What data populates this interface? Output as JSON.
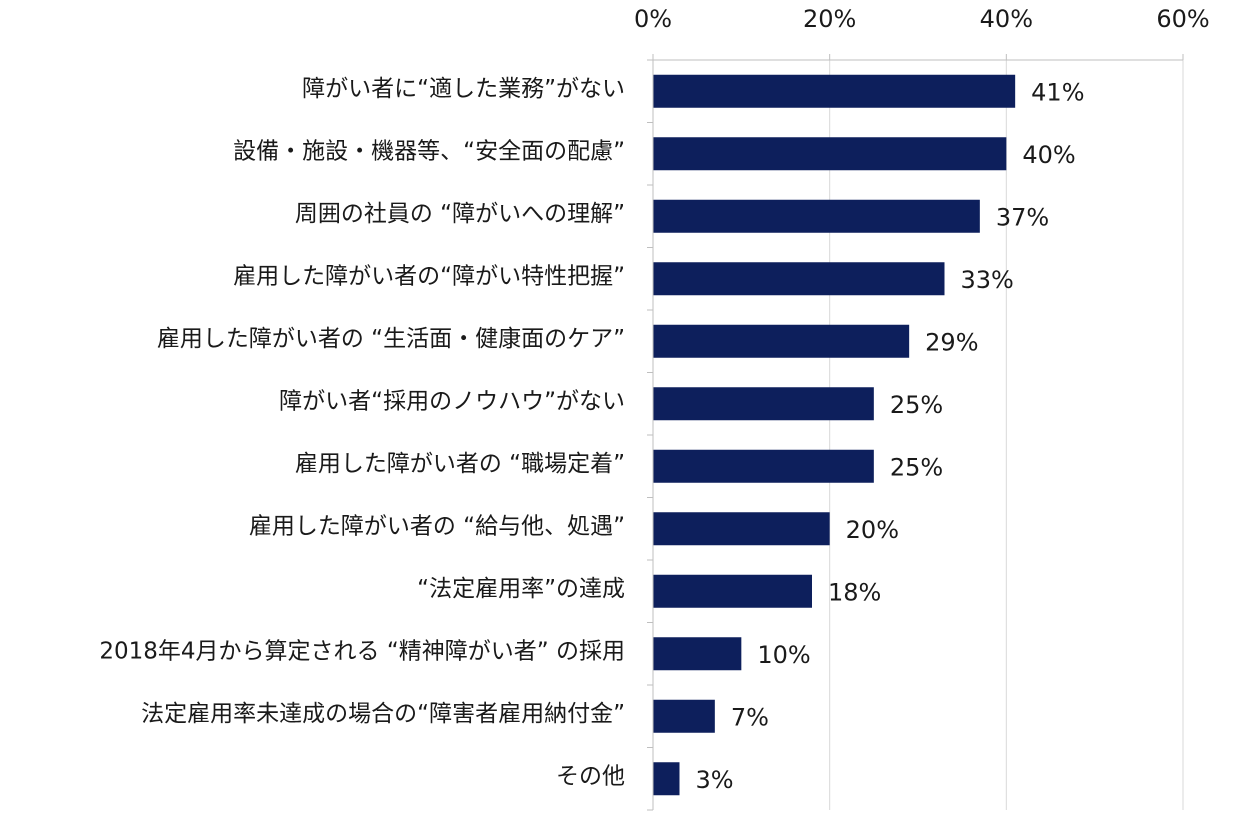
{
  "chart_data": {
    "type": "bar",
    "orientation": "horizontal",
    "categories": [
      "障がい者に“適した業務”がない",
      "設備・施設・機器等、“安全面の配慮”",
      "周囲の社員の “障がいへの理解”",
      "雇用した障がい者の“障がい特性把握”",
      "雇用した障がい者の “生活面・健康面のケア”",
      "障がい者“採用のノウハウ”がない",
      "雇用した障がい者の “職場定着”",
      "雇用した障がい者の “給与他、処遇”",
      "“法定雇用率”の達成",
      "2018年4月から算定される “精神障がい者” の採用",
      "法定雇用率未達成の場合の“障害者雇用納付金”",
      "その他"
    ],
    "values": [
      41,
      40,
      37,
      33,
      29,
      25,
      25,
      20,
      18,
      10,
      7,
      3
    ],
    "data_labels": [
      "41%",
      "40%",
      "37%",
      "33%",
      "29%",
      "25%",
      "25%",
      "20%",
      "18%",
      "10%",
      "7%",
      "3%"
    ],
    "xlim": [
      0,
      60
    ],
    "xticks": [
      0,
      20,
      40,
      60
    ],
    "xtick_labels": [
      "0%",
      "20%",
      "40%",
      "60%"
    ],
    "x_axis_position": "top",
    "grid": true,
    "title": "",
    "xlabel": "",
    "ylabel": "",
    "bar_color": "#0d1f5c"
  }
}
